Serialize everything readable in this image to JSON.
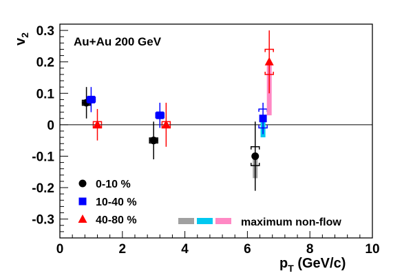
{
  "chart_data": {
    "type": "scatter",
    "title": "",
    "xlabel": "p",
    "xlabel_sub": "T",
    "xlabel_unit": " (GeV/c)",
    "ylabel": "v",
    "ylabel_sub": "2",
    "annotation": "Au+Au 200 GeV",
    "xlim": [
      0,
      10
    ],
    "ylim": [
      -0.36,
      0.32
    ],
    "x_ticks": [
      0,
      2,
      4,
      6,
      8,
      10
    ],
    "y_ticks": [
      -0.3,
      -0.2,
      -0.1,
      0,
      0.1,
      0.2,
      0.3
    ],
    "y_tick_labels": [
      "-0.3",
      "-0.2",
      "-0.1",
      "0",
      "0.1",
      "0.2",
      "0.3"
    ],
    "grid": false,
    "legend_position": "bottom-left",
    "series": [
      {
        "name": "0-10 %",
        "marker": "circle",
        "color": "#000000",
        "nonflow_color": "#a0a0a0",
        "points": [
          {
            "x": 0.85,
            "y": 0.07,
            "stat_err": 0.05,
            "sys_err": 0.008,
            "nonflow_low": 0.07,
            "nonflow_high": 0.07
          },
          {
            "x": 3.0,
            "y": -0.05,
            "stat_err": 0.06,
            "sys_err": 0.008,
            "nonflow_low": -0.05,
            "nonflow_high": -0.05
          },
          {
            "x": 6.25,
            "y": -0.1,
            "stat_err": 0.11,
            "sys_err": 0.03,
            "nonflow_low": -0.17,
            "nonflow_high": -0.1
          }
        ]
      },
      {
        "name": "10-40 %",
        "marker": "square",
        "color": "#0000ff",
        "nonflow_color": "#00c8f0",
        "points": [
          {
            "x": 1.0,
            "y": 0.08,
            "stat_err": 0.04,
            "sys_err": 0.008,
            "nonflow_low": 0.08,
            "nonflow_high": 0.08
          },
          {
            "x": 3.2,
            "y": 0.03,
            "stat_err": 0.04,
            "sys_err": 0.008,
            "nonflow_low": 0.025,
            "nonflow_high": 0.03
          },
          {
            "x": 6.5,
            "y": 0.02,
            "stat_err": 0.05,
            "sys_err": 0.03,
            "nonflow_low": -0.04,
            "nonflow_high": 0.02
          }
        ]
      },
      {
        "name": "40-80 %",
        "marker": "triangle",
        "color": "#ff0000",
        "nonflow_color": "#ff88c4",
        "points": [
          {
            "x": 1.2,
            "y": 0.0,
            "stat_err": 0.05,
            "sys_err": 0.01,
            "nonflow_low": 0.0,
            "nonflow_high": 0.0
          },
          {
            "x": 3.4,
            "y": 0.0,
            "stat_err": 0.07,
            "sys_err": 0.01,
            "nonflow_low": -0.01,
            "nonflow_high": 0.0
          },
          {
            "x": 6.7,
            "y": 0.2,
            "stat_err": 0.1,
            "sys_err": 0.04,
            "nonflow_low": 0.03,
            "nonflow_high": 0.2
          }
        ]
      }
    ],
    "nonflow_legend": {
      "label": "maximum non-flow",
      "colors": [
        "#a0a0a0",
        "#00c8f0",
        "#ff88c4"
      ]
    }
  }
}
